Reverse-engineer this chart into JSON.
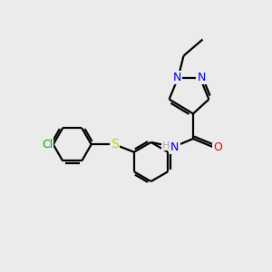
{
  "bg_color": "#ebebeb",
  "atom_colors": {
    "C": "#000000",
    "N": "#0000ee",
    "O": "#ee0000",
    "S": "#cccc00",
    "Cl": "#00aa00",
    "H": "#aaaaaa"
  },
  "line_color": "#000000",
  "line_width": 1.6
}
